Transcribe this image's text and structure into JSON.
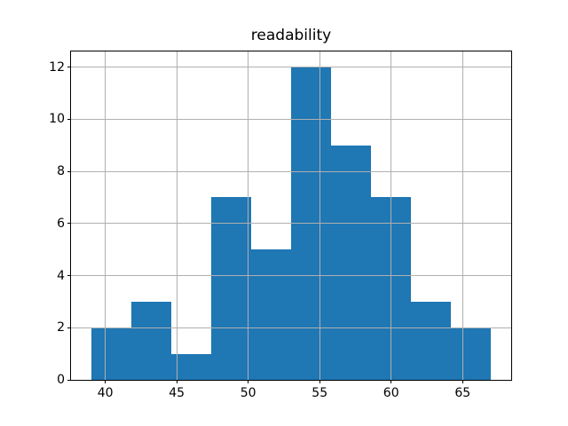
{
  "chart_data": {
    "type": "bar",
    "subtype": "histogram",
    "title": "readability",
    "xlabel": "",
    "ylabel": "",
    "bin_edges": [
      39.0,
      41.8,
      44.6,
      47.4,
      50.2,
      53.0,
      55.8,
      58.6,
      61.4,
      64.2,
      67.0
    ],
    "counts": [
      2,
      3,
      1,
      7,
      5,
      12,
      9,
      7,
      3,
      2
    ],
    "xticks": [
      40,
      45,
      50,
      55,
      60,
      65
    ],
    "yticks": [
      0,
      2,
      4,
      6,
      8,
      10,
      12
    ],
    "xlim": [
      37.6,
      68.4
    ],
    "ylim": [
      0,
      12.6
    ],
    "grid": true,
    "legend": false,
    "colors": {
      "bar": "#1f77b4",
      "grid": "#b0b0b0",
      "spine": "#000000",
      "text": "#000000",
      "background": "#ffffff"
    }
  }
}
